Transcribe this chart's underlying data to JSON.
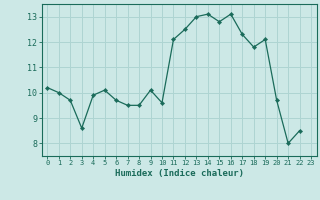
{
  "x": [
    0,
    1,
    2,
    3,
    4,
    5,
    6,
    7,
    8,
    9,
    10,
    11,
    12,
    13,
    14,
    15,
    16,
    17,
    18,
    19,
    20,
    21,
    22
  ],
  "y": [
    10.2,
    10.0,
    9.7,
    8.6,
    9.9,
    10.1,
    9.7,
    9.5,
    9.5,
    10.1,
    9.6,
    12.1,
    12.5,
    13.0,
    13.1,
    12.8,
    13.1,
    12.3,
    11.8,
    12.1,
    9.7,
    8.0,
    8.5
  ],
  "xlabel": "Humidex (Indice chaleur)",
  "xlim": [
    -0.5,
    23.5
  ],
  "ylim": [
    7.5,
    13.5
  ],
  "yticks": [
    8,
    9,
    10,
    11,
    12,
    13
  ],
  "xticks": [
    0,
    1,
    2,
    3,
    4,
    5,
    6,
    7,
    8,
    9,
    10,
    11,
    12,
    13,
    14,
    15,
    16,
    17,
    18,
    19,
    20,
    21,
    22,
    23
  ],
  "line_color": "#1a6b5a",
  "marker_color": "#1a6b5a",
  "bg_color": "#cce8e6",
  "grid_color": "#aed4d2",
  "axes_color": "#1a6b5a",
  "tick_color": "#1a6b5a",
  "label_color": "#1a6b5a"
}
